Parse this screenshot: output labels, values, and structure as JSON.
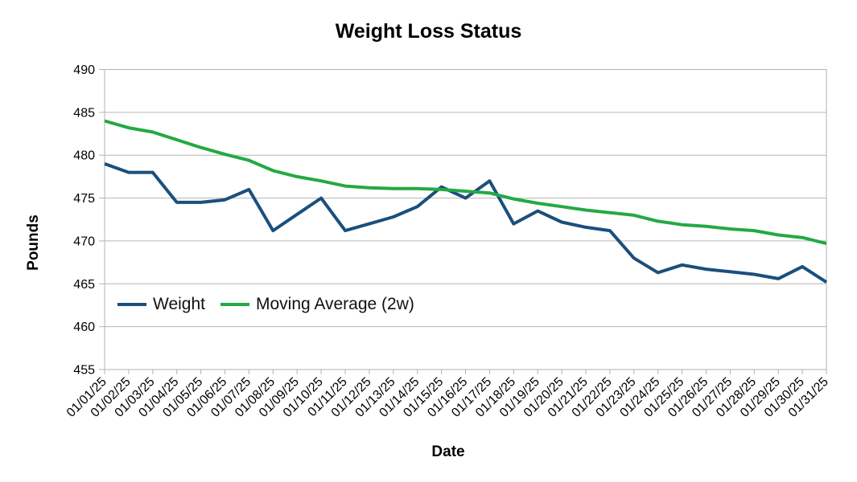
{
  "title": "Weight Loss Status",
  "axes": {
    "y_title": "Pounds",
    "x_title": "Date",
    "y_ticks": [
      490,
      485,
      480,
      475,
      470,
      465,
      460,
      455
    ]
  },
  "colors": {
    "grid": "#b6b6b6",
    "axis": "#b3b3b3",
    "text": "#000000",
    "weight_line": "#1b4f7c",
    "moving_average_line": "#24a944"
  },
  "chart_data": {
    "type": "line",
    "title": "Weight Loss Status",
    "xlabel": "Date",
    "ylabel": "Pounds",
    "ylim": [
      455,
      490
    ],
    "y_tick_step": 5,
    "grid": "horizontal",
    "legend_position": "inside-bottom-left",
    "categories": [
      "01/01/25",
      "01/02/25",
      "01/03/25",
      "01/04/25",
      "01/05/25",
      "01/06/25",
      "01/07/25",
      "01/08/25",
      "01/09/25",
      "01/10/25",
      "01/11/25",
      "01/12/25",
      "01/13/25",
      "01/14/25",
      "01/15/25",
      "01/16/25",
      "01/17/25",
      "01/18/25",
      "01/19/25",
      "01/20/25",
      "01/21/25",
      "01/22/25",
      "01/23/25",
      "01/24/25",
      "01/25/25",
      "01/26/25",
      "01/27/25",
      "01/28/25",
      "01/29/25",
      "01/30/25",
      "01/31/25"
    ],
    "series": [
      {
        "name": "Weight",
        "color": "#1b4f7c",
        "values": [
          479.0,
          478.0,
          478.0,
          474.5,
          474.5,
          474.8,
          476.0,
          471.2,
          473.1,
          475.0,
          471.2,
          472.0,
          472.8,
          474.0,
          476.3,
          475.0,
          477.0,
          472.0,
          473.5,
          472.2,
          471.6,
          471.2,
          468.0,
          466.3,
          467.2,
          466.7,
          466.4,
          466.1,
          465.6,
          467.0,
          465.2
        ]
      },
      {
        "name": "Moving Average (2w)",
        "color": "#24a944",
        "values": [
          484.0,
          483.2,
          482.7,
          481.8,
          480.9,
          480.1,
          479.4,
          478.2,
          477.5,
          477.0,
          476.4,
          476.2,
          476.1,
          476.1,
          476.0,
          475.8,
          475.6,
          474.9,
          474.4,
          474.0,
          473.6,
          473.3,
          473.0,
          472.3,
          471.9,
          471.7,
          471.4,
          471.2,
          470.7,
          470.4,
          469.7
        ]
      }
    ]
  }
}
